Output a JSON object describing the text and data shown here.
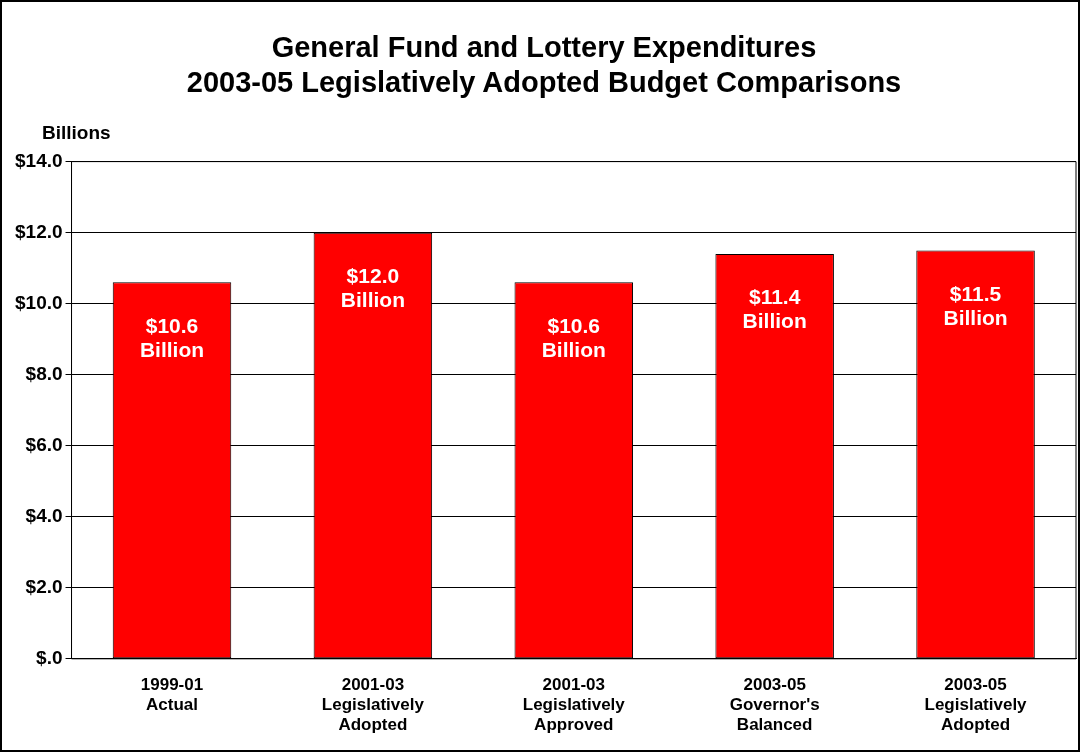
{
  "chart_data": {
    "type": "bar",
    "title": "General Fund and Lottery Expenditures\n2003-05 Legislatively Adopted Budget Comparisons",
    "ylabel": "Billions",
    "categories": [
      "1999-01 Actual",
      "2001-03 Legislatively Adopted",
      "2001-03 Legislatively Approved",
      "2003-05 Governor's Balanced",
      "2003-05 Legislatively Adopted"
    ],
    "values": [
      10.6,
      12.0,
      10.6,
      11.4,
      11.5
    ],
    "value_labels": [
      "$10.6 Billion",
      "$12.0 Billion",
      "$10.6 Billion",
      "$11.4 Billion",
      "$11.5 Billion"
    ],
    "color": "#ff0000",
    "ylim": [
      0,
      14
    ],
    "yticks": [
      {
        "value": 0,
        "label": "$.0"
      },
      {
        "value": 2,
        "label": "$2.0"
      },
      {
        "value": 4,
        "label": "$4.0"
      },
      {
        "value": 6,
        "label": "$6.0"
      },
      {
        "value": 8,
        "label": "$8.0"
      },
      {
        "value": 10,
        "label": "$10.0"
      },
      {
        "value": 12,
        "label": "$12.0"
      },
      {
        "value": 14,
        "label": "$14.0"
      }
    ],
    "grid": "y",
    "legend": false
  }
}
